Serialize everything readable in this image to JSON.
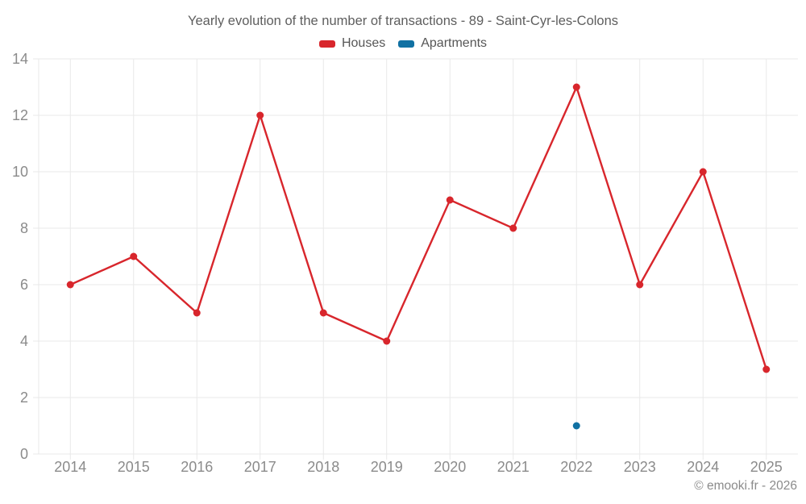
{
  "title": "Yearly evolution of the number of transactions - 89 - Saint-Cyr-les-Colons",
  "footer": "© emooki.fr - 2026",
  "chart_data": {
    "type": "line",
    "title": "Yearly evolution of the number of transactions - 89 - Saint-Cyr-les-Colons",
    "categories": [
      "2014",
      "2015",
      "2016",
      "2017",
      "2018",
      "2019",
      "2020",
      "2021",
      "2022",
      "2023",
      "2024",
      "2025"
    ],
    "series": [
      {
        "name": "Houses",
        "color": "#d8262c",
        "values": [
          6,
          7,
          5,
          12,
          5,
          4,
          9,
          8,
          13,
          6,
          10,
          3
        ]
      },
      {
        "name": "Apartments",
        "color": "#1171a3",
        "values": [
          null,
          null,
          null,
          null,
          null,
          null,
          null,
          null,
          1,
          null,
          null,
          null
        ]
      }
    ],
    "xlabel": "",
    "ylabel": "",
    "ylim": [
      0,
      14
    ],
    "ytick_step": 2,
    "grid": true,
    "legend_position": "top",
    "axis_label_color": "#8b8b8b",
    "grid_color": "#e9e9e9"
  }
}
